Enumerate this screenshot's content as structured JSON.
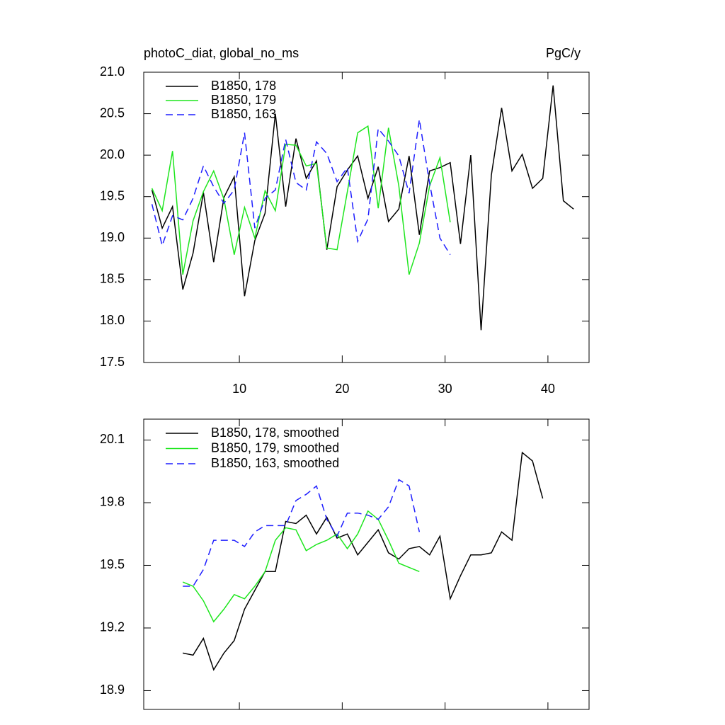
{
  "chart_data": [
    {
      "type": "line",
      "title": "photoC_diat, global_no_ms",
      "units": "PgC/y",
      "xlim": [
        0.7,
        44.0
      ],
      "xticks": [
        10,
        20,
        30,
        40
      ],
      "ylim": [
        17.5,
        21.0
      ],
      "yticks": [
        17.5,
        {
          "value": 18.0,
          "label": "18.0"
        },
        18.5,
        {
          "value": 19.0,
          "label": "19.0"
        },
        19.5,
        {
          "value": 20.0,
          "label": "20.0"
        },
        20.5,
        {
          "value": 21.0,
          "label": "21.0"
        }
      ],
      "series": [
        {
          "name": "B1850, 178",
          "color": "#000000",
          "dash": false,
          "x": [
            1.5,
            2.5,
            3.5,
            4.5,
            5.5,
            6.5,
            7.5,
            8.5,
            9.5,
            10.5,
            11.5,
            12.5,
            13.5,
            14.5,
            15.5,
            16.5,
            17.5,
            18.5,
            19.5,
            20.5,
            21.5,
            22.5,
            23.5,
            24.5,
            25.5,
            26.5,
            27.5,
            28.5,
            29.5,
            30.5,
            31.5,
            32.5,
            33.5,
            34.5,
            35.5,
            36.5,
            37.5,
            38.5,
            39.5,
            40.5,
            41.5,
            42.5
          ],
          "values": [
            19.58,
            19.12,
            19.38,
            18.38,
            18.82,
            19.55,
            18.71,
            19.49,
            19.74,
            18.3,
            18.97,
            19.3,
            20.5,
            19.38,
            20.2,
            19.72,
            19.93,
            18.86,
            19.62,
            19.82,
            19.99,
            19.48,
            19.86,
            19.2,
            19.35,
            19.99,
            19.04,
            19.81,
            19.85,
            19.91,
            18.93,
            20.0,
            17.89,
            19.76,
            20.57,
            19.81,
            20.01,
            19.6,
            19.72,
            20.84,
            19.45,
            19.35
          ]
        },
        {
          "name": "B1850, 179",
          "color": "#1ee61e",
          "dash": false,
          "x": [
            1.5,
            2.5,
            3.5,
            4.5,
            5.5,
            6.5,
            7.5,
            8.5,
            9.5,
            10.5,
            11.5,
            12.5,
            13.5,
            14.5,
            15.5,
            16.5,
            17.5,
            18.5,
            19.5,
            20.5,
            21.5,
            22.5,
            23.5,
            24.5,
            25.5,
            26.5,
            27.5,
            28.5,
            29.5,
            30.5
          ],
          "values": [
            19.6,
            19.33,
            20.05,
            18.56,
            19.21,
            19.56,
            19.81,
            19.47,
            18.8,
            19.37,
            19.0,
            19.57,
            19.33,
            20.13,
            20.12,
            19.87,
            19.9,
            18.88,
            18.86,
            19.56,
            20.27,
            20.35,
            19.36,
            20.33,
            19.63,
            18.56,
            18.94,
            19.63,
            19.97,
            19.19
          ]
        },
        {
          "name": "B1850, 163",
          "color": "#1e1eff",
          "dash": true,
          "x": [
            1.5,
            2.5,
            3.5,
            4.5,
            5.5,
            6.5,
            7.5,
            8.5,
            9.5,
            10.5,
            11.5,
            12.5,
            13.5,
            14.5,
            15.5,
            16.5,
            17.5,
            18.5,
            19.5,
            20.5,
            21.5,
            22.5,
            23.5,
            24.5,
            25.5,
            26.5,
            27.5,
            28.5,
            29.5,
            30.5
          ],
          "values": [
            19.41,
            18.91,
            19.27,
            19.22,
            19.48,
            19.87,
            19.62,
            19.42,
            19.58,
            20.27,
            19.12,
            19.48,
            19.58,
            20.19,
            19.67,
            19.58,
            20.16,
            20.02,
            19.68,
            19.85,
            18.96,
            19.23,
            20.32,
            20.17,
            19.99,
            19.54,
            20.43,
            19.66,
            19.0,
            18.8
          ]
        }
      ]
    },
    {
      "type": "line",
      "xlim": [
        0.7,
        44.0
      ],
      "xticks": [
        10,
        20,
        30,
        40
      ],
      "ylim": [
        18.81,
        20.2
      ],
      "yticks": [
        18.9,
        19.2,
        19.5,
        19.8,
        20.1
      ],
      "series": [
        {
          "name": "B1850, 178, smoothed",
          "color": "#000000",
          "dash": false,
          "x": [
            4.5,
            5.5,
            6.5,
            7.5,
            8.5,
            9.5,
            10.5,
            11.5,
            12.5,
            13.5,
            14.5,
            15.5,
            16.5,
            17.5,
            18.5,
            19.5,
            20.5,
            21.5,
            22.5,
            23.5,
            24.5,
            25.5,
            26.5,
            27.5,
            28.5,
            29.5,
            30.5,
            31.5,
            32.5,
            33.5,
            34.5,
            35.5,
            36.5,
            37.5,
            38.5,
            39.5
          ],
          "values": [
            19.08,
            19.07,
            19.15,
            19.0,
            19.08,
            19.14,
            19.29,
            19.38,
            19.47,
            19.47,
            19.71,
            19.7,
            19.74,
            19.65,
            19.73,
            19.63,
            19.65,
            19.55,
            19.61,
            19.67,
            19.56,
            19.53,
            19.58,
            19.59,
            19.55,
            19.64,
            19.34,
            19.45,
            19.55,
            19.55,
            19.56,
            19.66,
            19.62,
            20.04,
            20.0,
            19.82
          ]
        },
        {
          "name": "B1850, 179, smoothed",
          "color": "#1ee61e",
          "dash": false,
          "x": [
            4.5,
            5.5,
            6.5,
            7.5,
            8.5,
            9.5,
            10.5,
            11.5,
            12.5,
            13.5,
            14.5,
            15.5,
            16.5,
            17.5,
            18.5,
            19.5,
            20.5,
            21.5,
            22.5,
            23.5,
            24.5,
            25.5,
            26.5,
            27.5
          ],
          "values": [
            19.42,
            19.4,
            19.33,
            19.23,
            19.29,
            19.36,
            19.34,
            19.4,
            19.47,
            19.62,
            19.68,
            19.67,
            19.57,
            19.6,
            19.62,
            19.65,
            19.58,
            19.65,
            19.76,
            19.72,
            19.62,
            19.51,
            19.49,
            19.47
          ]
        },
        {
          "name": "B1850, 163, smoothed",
          "color": "#1e1eff",
          "dash": true,
          "x": [
            4.5,
            5.5,
            6.5,
            7.5,
            8.5,
            9.5,
            10.5,
            11.5,
            12.5,
            13.5,
            14.5,
            15.5,
            16.5,
            17.5,
            18.5,
            19.5,
            20.5,
            21.5,
            22.5,
            23.5,
            24.5,
            25.5,
            26.5,
            27.5
          ],
          "values": [
            19.4,
            19.4,
            19.48,
            19.62,
            19.62,
            19.62,
            19.59,
            19.66,
            19.69,
            19.69,
            19.69,
            19.81,
            19.84,
            19.88,
            19.72,
            19.64,
            19.75,
            19.75,
            19.74,
            19.72,
            19.78,
            19.91,
            19.88,
            19.66
          ]
        }
      ]
    }
  ]
}
